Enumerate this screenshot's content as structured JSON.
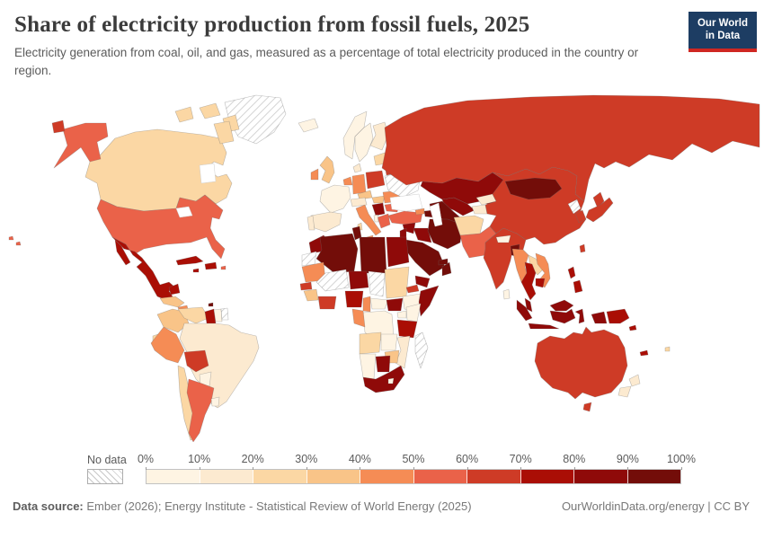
{
  "header": {
    "title": "Share of electricity production from fossil fuels, 2025",
    "subtitle": "Electricity generation from coal, oil, and gas, measured as a percentage of total electricity produced in the country or region.",
    "logo": {
      "line1": "Our World",
      "line2": "in Data",
      "bg_color": "#1d3d63",
      "accent_color": "#cf2722"
    }
  },
  "legend": {
    "no_data_label": "No data",
    "tick_labels": [
      "0%",
      "10%",
      "20%",
      "30%",
      "40%",
      "50%",
      "60%",
      "70%",
      "80%",
      "90%",
      "100%"
    ],
    "colors": [
      "#FEF4E3",
      "#FCEAD0",
      "#FBD7A4",
      "#F9C488",
      "#F58C55",
      "#EA6249",
      "#CE3B26",
      "#AA0E05",
      "#8F0A09",
      "#730D09"
    ]
  },
  "footer": {
    "source_label": "Data source:",
    "source_text": " Ember (2026); Energy Institute - Statistical Review of World Energy (2025)",
    "link_text": "OurWorldinData.org/energy | CC BY"
  },
  "chart_data": {
    "type": "choropleth",
    "title": "Share of electricity production from fossil fuels, 2025",
    "unit": "% of total electricity produced",
    "year": "2025",
    "bin_edges_percent": [
      0,
      10,
      20,
      30,
      40,
      50,
      60,
      70,
      80,
      90,
      100
    ],
    "bin_labels": [
      "0-10%",
      "10-20%",
      "20-30%",
      "30-40%",
      "40-50%",
      "50-60%",
      "60-70%",
      "70-80%",
      "80-90%",
      "90-100%"
    ],
    "no_data_value": 0,
    "legend_position": "bottom",
    "regions": {
      "greenland": 0,
      "canada": 3,
      "usa": 6,
      "mexico": 8,
      "cuba": 8,
      "hispaniola": 8,
      "jamaica": 8,
      "puerto-rico": 6,
      "hawaii": 6,
      "guatemala-honduras": 4,
      "nicaragua": 5,
      "costa-rica-panama": 4,
      "trinidad-and-tobago": 10,
      "colombia": 4,
      "venezuela": 3,
      "guyana": 8,
      "suriname": 1,
      "french-guiana": 0,
      "ecuador": 3,
      "peru": 5,
      "brazil": 2,
      "bolivia": 7,
      "paraguay": 1,
      "uruguay": 1,
      "chile": 3,
      "argentina": 6,
      "iceland": 1,
      "norway": 1,
      "sweden": 1,
      "finland": 2,
      "denmark": 2,
      "uk": 4,
      "ireland": 5,
      "france": 1,
      "benelux": 5,
      "germany": 5,
      "poland": 7,
      "czechia": 4,
      "austria-switzerland": 2,
      "italy": 5,
      "sardinia": 3,
      "spain": 2,
      "portugal": 2,
      "hungary": 4,
      "romania": 5,
      "bulgaria": 6,
      "serbia-bosnia": 9,
      "greece": 6,
      "albania": 1,
      "baltics": 3,
      "belarus": 7,
      "ukraine": 0,
      "russia": 7,
      "kazakhstan": 9,
      "uzbekistan": 9,
      "turkmenistan": 10,
      "kyrgyzstan": 2,
      "tajikistan": 2,
      "afghanistan": 3,
      "pakistan": 6,
      "india": 7,
      "nepal": 1,
      "bangladesh": 10,
      "sri-lanka": 1,
      "china": 7,
      "mongolia": 10,
      "north-korea": 0,
      "south-korea": 7,
      "japan": 7,
      "taiwan": 7,
      "myanmar": 5,
      "laos": 3,
      "thailand": 8,
      "vietnam": 5,
      "cambodia": 8,
      "malaysia": 9,
      "indonesia": 9,
      "philippines": 8,
      "papua-new-guinea": 8,
      "australia": 7,
      "new-zealand": 2,
      "new-caledonia": 8,
      "fiji": 3,
      "solomon-islands": 8,
      "turkey": 6,
      "syria": 9,
      "iraq": 9,
      "iran": 10,
      "saudi-arabia": 10,
      "yemen": 9,
      "oman": 10,
      "uae-qatar": 10,
      "jordan-israel": 9,
      "georgia": 5,
      "azerbaijan": 10,
      "morocco": 9,
      "western-sahara": 0,
      "algeria": 10,
      "tunisia": 10,
      "libya": 10,
      "egypt": 9,
      "mauritania": 5,
      "mali": 0,
      "niger": 9,
      "chad": 0,
      "sudan": 3,
      "eritrea": 7,
      "ethiopia": 1,
      "somalia": 9,
      "senegal": 7,
      "guinea": 4,
      "ivory-coast-ghana": 7,
      "nigeria": 8,
      "cameroon": 5,
      "central-african-republic": 1,
      "south-sudan": 9,
      "uganda": 1,
      "kenya": 1,
      "drc": 1,
      "gabon-congo": 5,
      "tanzania": 8,
      "angola": 3,
      "zambia": 1,
      "mozambique": 2,
      "zimbabwe": 4,
      "botswana": 9,
      "namibia": 1,
      "south-africa": 9,
      "lesotho": 1,
      "madagascar": 0
    }
  }
}
